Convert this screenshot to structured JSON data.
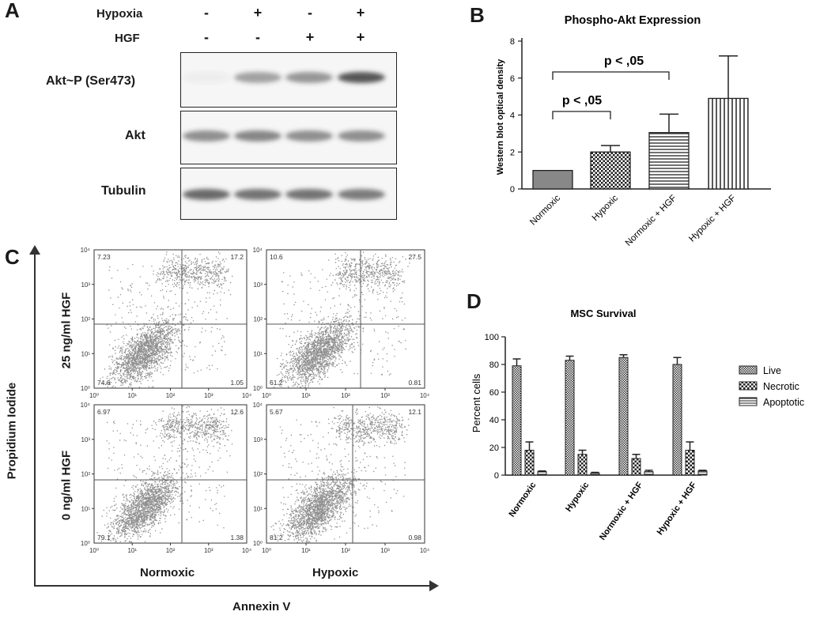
{
  "panels": {
    "a": {
      "label": "A",
      "conditions": [
        {
          "name": "Hypoxia",
          "signs": [
            "-",
            "+",
            "-",
            "+"
          ]
        },
        {
          "name": "HGF",
          "signs": [
            "-",
            "-",
            "+",
            "+"
          ]
        }
      ],
      "blots": [
        {
          "label": "Akt~P (Ser473)",
          "intensity": [
            0.05,
            0.45,
            0.5,
            0.85
          ]
        },
        {
          "label": "Akt",
          "intensity": [
            0.55,
            0.6,
            0.55,
            0.55
          ]
        },
        {
          "label": "Tubulin",
          "intensity": [
            0.75,
            0.7,
            0.7,
            0.65
          ]
        }
      ]
    },
    "b": {
      "label": "B"
    },
    "c": {
      "label": "C",
      "y_axis_label": "Propidium Iodide",
      "x_axis_label": "Annexin V",
      "row_labels": [
        "25 ng/ml HGF",
        "0 ng/ml HGF"
      ],
      "col_labels": [
        "Normoxic",
        "Hypoxic"
      ],
      "tick_labels": [
        "10⁰",
        "10¹",
        "10²",
        "10³",
        "10⁴"
      ],
      "plots": [
        {
          "ul": "7.23",
          "ur": "17.2",
          "ll": "74.6",
          "lr": "1.05"
        },
        {
          "ul": "10.6",
          "ur": "27.5",
          "ll": "61.2",
          "lr": "0.81"
        },
        {
          "ul": "6.97",
          "ur": "12.6",
          "ll": "79.1",
          "lr": "1.38"
        },
        {
          "ul": "5.67",
          "ur": "12.1",
          "ll": "81.2",
          "lr": "0.98"
        }
      ]
    },
    "d": {
      "label": "D"
    }
  },
  "chart_data": [
    {
      "type": "bar",
      "title": "Phospho-Akt Expression",
      "xlabel": "",
      "ylabel": "Western blot optical density",
      "ylim": [
        0,
        8
      ],
      "yticks": [
        "0",
        "2",
        "4",
        "6",
        "8"
      ],
      "categories": [
        "Normoxic",
        "Hypoxic",
        "Normoxic + HGF",
        "Hypoxic + HGF"
      ],
      "values": [
        1.0,
        2.0,
        3.05,
        4.9
      ],
      "errors": [
        0,
        0.35,
        1.0,
        2.3
      ],
      "annotations": [
        {
          "text": "p < ,05",
          "from": 0,
          "to": 1
        },
        {
          "text": "p < ,05",
          "from": 0,
          "to": 2
        }
      ]
    },
    {
      "type": "bar",
      "title": "MSC Survival",
      "xlabel": "",
      "ylabel": "Percent cells",
      "ylim": [
        0,
        100
      ],
      "yticks": [
        "0",
        "20",
        "40",
        "60",
        "80",
        "100"
      ],
      "categories": [
        "Normoxic",
        "Hypoxic",
        "Normoxic + HGF",
        "Hypoxic + HGF"
      ],
      "series": [
        {
          "name": "Live",
          "values": [
            79,
            83,
            85,
            80
          ],
          "errors": [
            5,
            3,
            2,
            5
          ]
        },
        {
          "name": "Necrotic",
          "values": [
            18,
            15,
            12,
            18
          ],
          "errors": [
            6,
            3,
            3,
            6
          ]
        },
        {
          "name": "Apoptotic",
          "values": [
            2.5,
            1.5,
            2.5,
            3
          ],
          "errors": [
            0.5,
            0.5,
            1,
            0.5
          ]
        }
      ]
    }
  ]
}
